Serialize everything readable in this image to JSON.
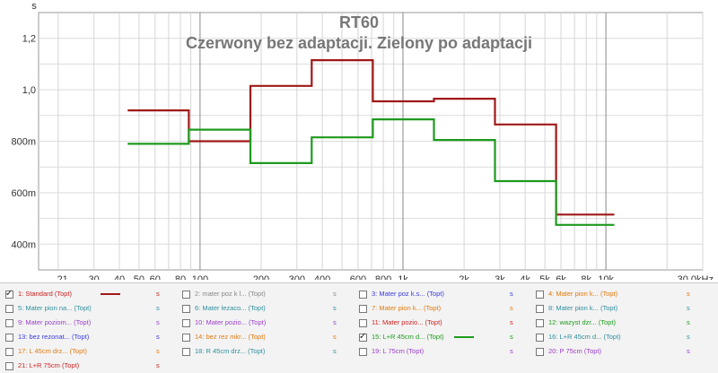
{
  "chart_data": {
    "type": "line",
    "title": "RT60",
    "subtitle": "Czerwony bez adaptacji. Zielony po adaptacji",
    "ylabel": "s",
    "xlabel": "",
    "x_scale": "log",
    "xlim": [
      16,
      30000
    ],
    "ylim": [
      0.3,
      1.3
    ],
    "grid": true,
    "x_ticks": [
      {
        "v": 21,
        "label": "21"
      },
      {
        "v": 30,
        "label": "30"
      },
      {
        "v": 40,
        "label": "40"
      },
      {
        "v": 50,
        "label": "50"
      },
      {
        "v": 60,
        "label": "60"
      },
      {
        "v": 80,
        "label": "80"
      },
      {
        "v": 100,
        "label": "100"
      },
      {
        "v": 200,
        "label": "200"
      },
      {
        "v": 300,
        "label": "300"
      },
      {
        "v": 400,
        "label": "400"
      },
      {
        "v": 600,
        "label": "600"
      },
      {
        "v": 800,
        "label": "800"
      },
      {
        "v": 1000,
        "label": "1k"
      },
      {
        "v": 2000,
        "label": "2k"
      },
      {
        "v": 3000,
        "label": "3k"
      },
      {
        "v": 4000,
        "label": "4k"
      },
      {
        "v": 5000,
        "label": "5k"
      },
      {
        "v": 6000,
        "label": "6k"
      },
      {
        "v": 8000,
        "label": "8k"
      },
      {
        "v": 10000,
        "label": "10k"
      },
      {
        "v": 30000,
        "label": "30,0kHz"
      }
    ],
    "y_ticks": [
      {
        "v": 0.4,
        "label": "400m"
      },
      {
        "v": 0.6,
        "label": "600m"
      },
      {
        "v": 0.8,
        "label": "800m"
      },
      {
        "v": 1.0,
        "label": "1,0"
      },
      {
        "v": 1.2,
        "label": "1,2"
      }
    ],
    "series": [
      {
        "name": "1: Standard (Topt)",
        "color": "#a01818",
        "steps": [
          {
            "x0": 44,
            "x1": 88,
            "y": 0.92
          },
          {
            "x0": 88,
            "x1": 177,
            "y": 0.8
          },
          {
            "x0": 177,
            "x1": 355,
            "y": 1.015
          },
          {
            "x0": 355,
            "x1": 710,
            "y": 1.115
          },
          {
            "x0": 710,
            "x1": 1420,
            "y": 0.955
          },
          {
            "x0": 1420,
            "x1": 2840,
            "y": 0.965
          },
          {
            "x0": 2840,
            "x1": 5680,
            "y": 0.865
          },
          {
            "x0": 5680,
            "x1": 11000,
            "y": 0.515
          }
        ]
      },
      {
        "name": "15: L+R 45cm d... (Topt)",
        "color": "#1e9a1e",
        "steps": [
          {
            "x0": 44,
            "x1": 88,
            "y": 0.79
          },
          {
            "x0": 88,
            "x1": 177,
            "y": 0.845
          },
          {
            "x0": 177,
            "x1": 355,
            "y": 0.715
          },
          {
            "x0": 355,
            "x1": 710,
            "y": 0.815
          },
          {
            "x0": 710,
            "x1": 1420,
            "y": 0.885
          },
          {
            "x0": 1420,
            "x1": 2840,
            "y": 0.805
          },
          {
            "x0": 2840,
            "x1": 5680,
            "y": 0.645
          },
          {
            "x0": 5680,
            "x1": 11000,
            "y": 0.475
          }
        ]
      }
    ]
  },
  "legend": {
    "flag": "s",
    "items": [
      {
        "label": "1: Standard (Topt)",
        "color": "#cc2222",
        "checked": true,
        "swatch": "#a01818"
      },
      {
        "label": "2: mater poz k l... (Topt)",
        "color": "#888888",
        "checked": false
      },
      {
        "label": "3: Mater poz k.s... (Topt)",
        "color": "#3a3ae0",
        "checked": false
      },
      {
        "label": "4: Mater pion k... (Topt)",
        "color": "#e07a10",
        "checked": false
      },
      {
        "label": "5: Mater pion na... (Topt)",
        "color": "#2f8f9f",
        "checked": false
      },
      {
        "label": "6: Mater lezaco... (Topt)",
        "color": "#2f8f9f",
        "checked": false
      },
      {
        "label": "7: Mater pion k... (Topt)",
        "color": "#e07a10",
        "checked": false
      },
      {
        "label": "8: Mater pion k... (Topt)",
        "color": "#2f8f9f",
        "checked": false
      },
      {
        "label": "9: Mater poziom... (Topt)",
        "color": "#9b3ec8",
        "checked": false
      },
      {
        "label": "10: Mater pozio... (Topt)",
        "color": "#9b3ec8",
        "checked": false
      },
      {
        "label": "11: Mater pozio... (Topt)",
        "color": "#cc2222",
        "checked": false
      },
      {
        "label": "12: wazyst dzr... (Topt)",
        "color": "#1e9a1e",
        "checked": false
      },
      {
        "label": "13: bez rezonat... (Topt)",
        "color": "#3a3ae0",
        "checked": false
      },
      {
        "label": "14: bez rez mkr... (Topt)",
        "color": "#e07a10",
        "checked": false
      },
      {
        "label": "15: L+R 45cm d... (Topt)",
        "color": "#1e9a1e",
        "checked": true,
        "swatch": "#1e9a1e"
      },
      {
        "label": "16: L+R 45cm d... (Topt)",
        "color": "#2f8f9f",
        "checked": false
      },
      {
        "label": "17: L 45cm drz... (Topt)",
        "color": "#e07a10",
        "checked": false
      },
      {
        "label": "18: R 45cm drz... (Topt)",
        "color": "#2f8f9f",
        "checked": false
      },
      {
        "label": "19: L 75cm (Topt)",
        "color": "#9b3ec8",
        "checked": false
      },
      {
        "label": "20: P 75cm (Topt)",
        "color": "#9b3ec8",
        "checked": false
      },
      {
        "label": "21: L+R 75cm (Topt)",
        "color": "#cc2222",
        "checked": false
      }
    ]
  }
}
